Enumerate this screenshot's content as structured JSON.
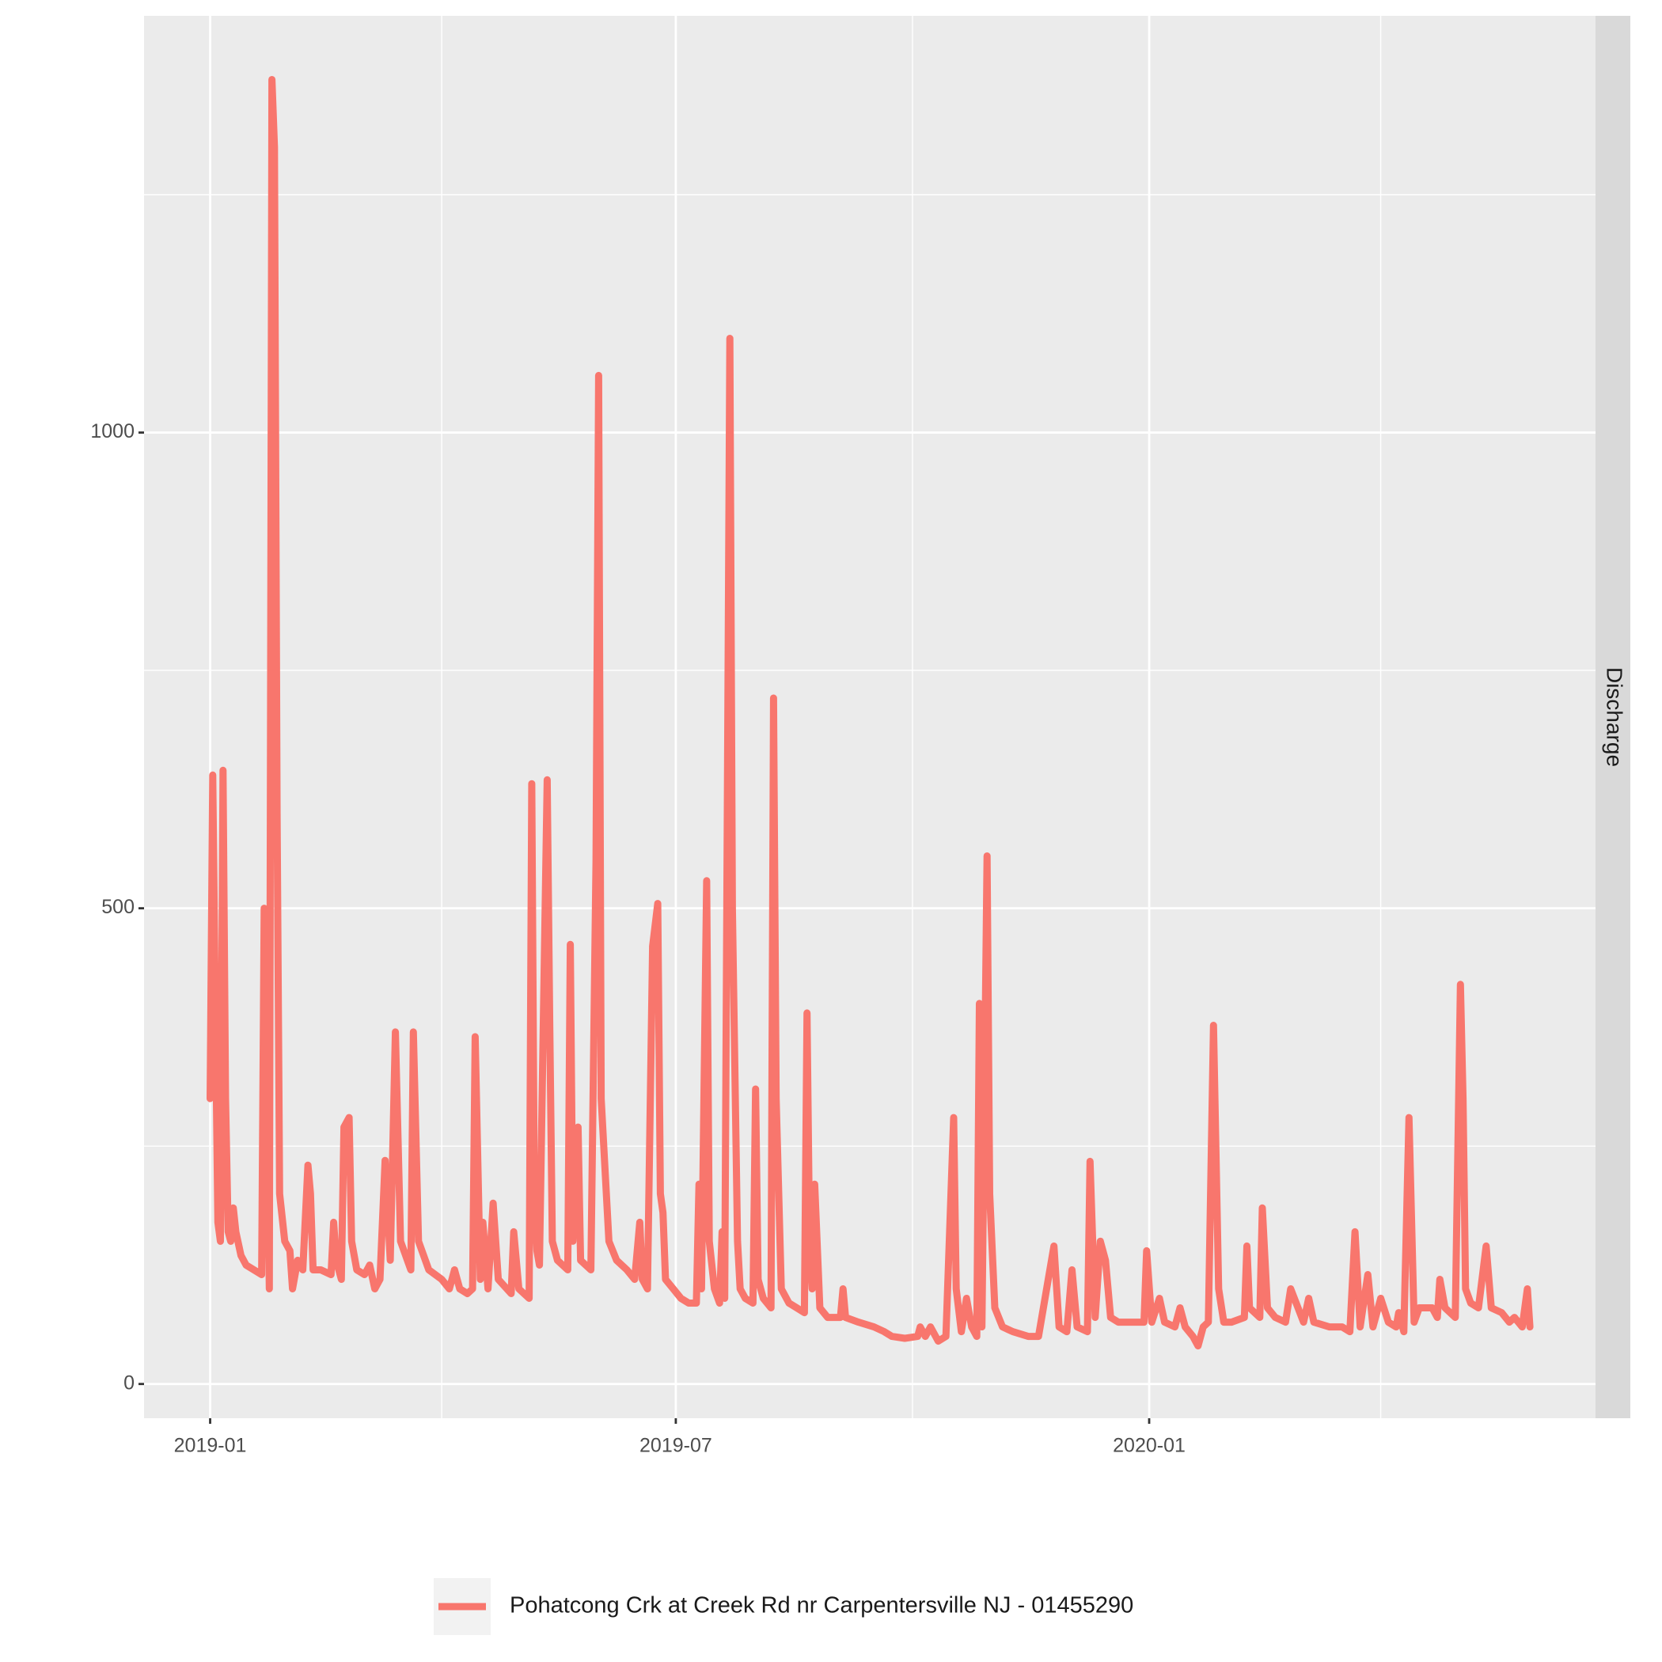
{
  "chart_data": {
    "type": "line",
    "facet_label": "Discharge",
    "x": [
      0,
      1,
      2,
      3,
      4,
      5,
      6,
      7,
      8,
      9,
      10,
      12,
      14,
      17,
      20,
      21,
      22,
      23,
      24,
      25,
      26,
      27,
      29,
      31,
      32,
      34,
      36,
      38,
      39,
      40,
      43,
      47,
      48,
      49,
      51,
      52,
      54,
      55,
      57,
      60,
      62,
      64,
      66,
      68,
      70,
      72,
      74,
      78,
      79,
      81,
      85,
      90,
      93,
      95,
      97,
      100,
      102,
      103,
      105,
      106,
      108,
      110,
      112,
      117,
      118,
      120,
      124,
      125,
      126,
      127,
      128,
      131,
      132,
      133,
      135,
      139,
      140,
      141,
      143,
      144,
      148,
      150,
      151,
      152,
      155,
      158,
      162,
      165,
      167,
      168,
      170,
      172,
      174,
      175,
      176,
      177,
      180,
      183,
      186,
      189,
      190,
      191,
      193,
      194,
      196,
      198,
      199,
      200,
      202,
      203,
      205,
      206,
      208,
      211,
      212,
      213,
      215,
      218,
      219,
      220,
      222,
      225,
      228,
      231,
      232,
      233,
      234,
      235,
      237,
      240,
      245,
      246,
      247,
      252,
      258,
      262,
      265,
      270,
      275,
      276,
      278,
      280,
      283,
      286,
      289,
      290,
      292,
      294,
      296,
      298,
      299,
      300,
      302,
      303,
      305,
      308,
      312,
      318,
      322,
      328,
      330,
      333,
      335,
      337,
      341,
      342,
      344,
      346,
      348,
      350,
      353,
      356,
      360,
      363,
      364,
      366,
      369,
      371,
      375,
      377,
      379,
      382,
      384,
      386,
      388,
      390,
      392,
      394,
      397,
      402,
      403,
      404,
      408,
      409,
      411,
      414,
      418,
      420,
      425,
      427,
      429,
      435,
      440,
      443,
      445,
      447,
      450,
      452,
      455,
      458,
      461,
      462,
      464,
      466,
      468,
      470,
      475,
      477,
      478,
      480,
      484,
      486,
      487,
      488,
      490,
      493,
      496,
      498,
      502,
      505,
      507,
      510,
      512,
      513
    ],
    "series": [
      {
        "name": "Pohatcong Crk at Creek Rd nr Carpentersville NJ - 01455290",
        "color": "#F8766D",
        "values": [
          300,
          640,
          400,
          170,
          150,
          645,
          300,
          160,
          150,
          185,
          160,
          135,
          125,
          120,
          115,
          500,
          300,
          100,
          1371,
          1300,
          600,
          200,
          150,
          140,
          100,
          130,
          120,
          230,
          200,
          120,
          120,
          115,
          170,
          130,
          110,
          270,
          280,
          150,
          120,
          115,
          125,
          100,
          110,
          235,
          130,
          370,
          150,
          120,
          370,
          150,
          120,
          110,
          100,
          120,
          100,
          95,
          100,
          365,
          110,
          170,
          100,
          190,
          110,
          95,
          160,
          100,
          90,
          631,
          200,
          140,
          125,
          635,
          380,
          150,
          130,
          120,
          462,
          150,
          270,
          130,
          120,
          550,
          1060,
          300,
          150,
          130,
          120,
          110,
          170,
          110,
          100,
          460,
          505,
          200,
          180,
          110,
          100,
          90,
          85,
          85,
          210,
          100,
          529,
          150,
          100,
          85,
          160,
          90,
          1099,
          500,
          150,
          100,
          90,
          85,
          310,
          110,
          90,
          80,
          721,
          300,
          100,
          85,
          80,
          75,
          390,
          150,
          100,
          210,
          80,
          70,
          70,
          100,
          70,
          65,
          60,
          55,
          50,
          48,
          50,
          60,
          50,
          60,
          45,
          50,
          280,
          100,
          55,
          90,
          60,
          50,
          400,
          60,
          555,
          200,
          80,
          60,
          55,
          50,
          50,
          145,
          60,
          55,
          120,
          60,
          55,
          234,
          70,
          150,
          130,
          70,
          65,
          65,
          65,
          65,
          140,
          65,
          90,
          65,
          60,
          80,
          60,
          50,
          40,
          60,
          65,
          377,
          100,
          65,
          65,
          70,
          145,
          80,
          70,
          185,
          80,
          70,
          65,
          100,
          65,
          90,
          65,
          60,
          60,
          55,
          160,
          60,
          115,
          60,
          90,
          65,
          60,
          75,
          55,
          280,
          65,
          80,
          80,
          70,
          110,
          80,
          70,
          420,
          300,
          100,
          85,
          80,
          145,
          80,
          75,
          65,
          70,
          60,
          100,
          60
        ]
      }
    ],
    "xlim": [
      -25.7,
      538.5
    ],
    "xticks": [
      {
        "value": 0,
        "label": "2019-01"
      },
      {
        "value": 181,
        "label": "2019-07"
      },
      {
        "value": 365,
        "label": "2020-01"
      }
    ],
    "x_minor_ticks": [
      90,
      273,
      455
    ],
    "ylim": [
      -36,
      1438
    ],
    "yticks": [
      0,
      500,
      1000
    ],
    "y_minor_ticks": [
      250,
      750,
      1250
    ],
    "grid": true,
    "legend_position": "bottom"
  }
}
